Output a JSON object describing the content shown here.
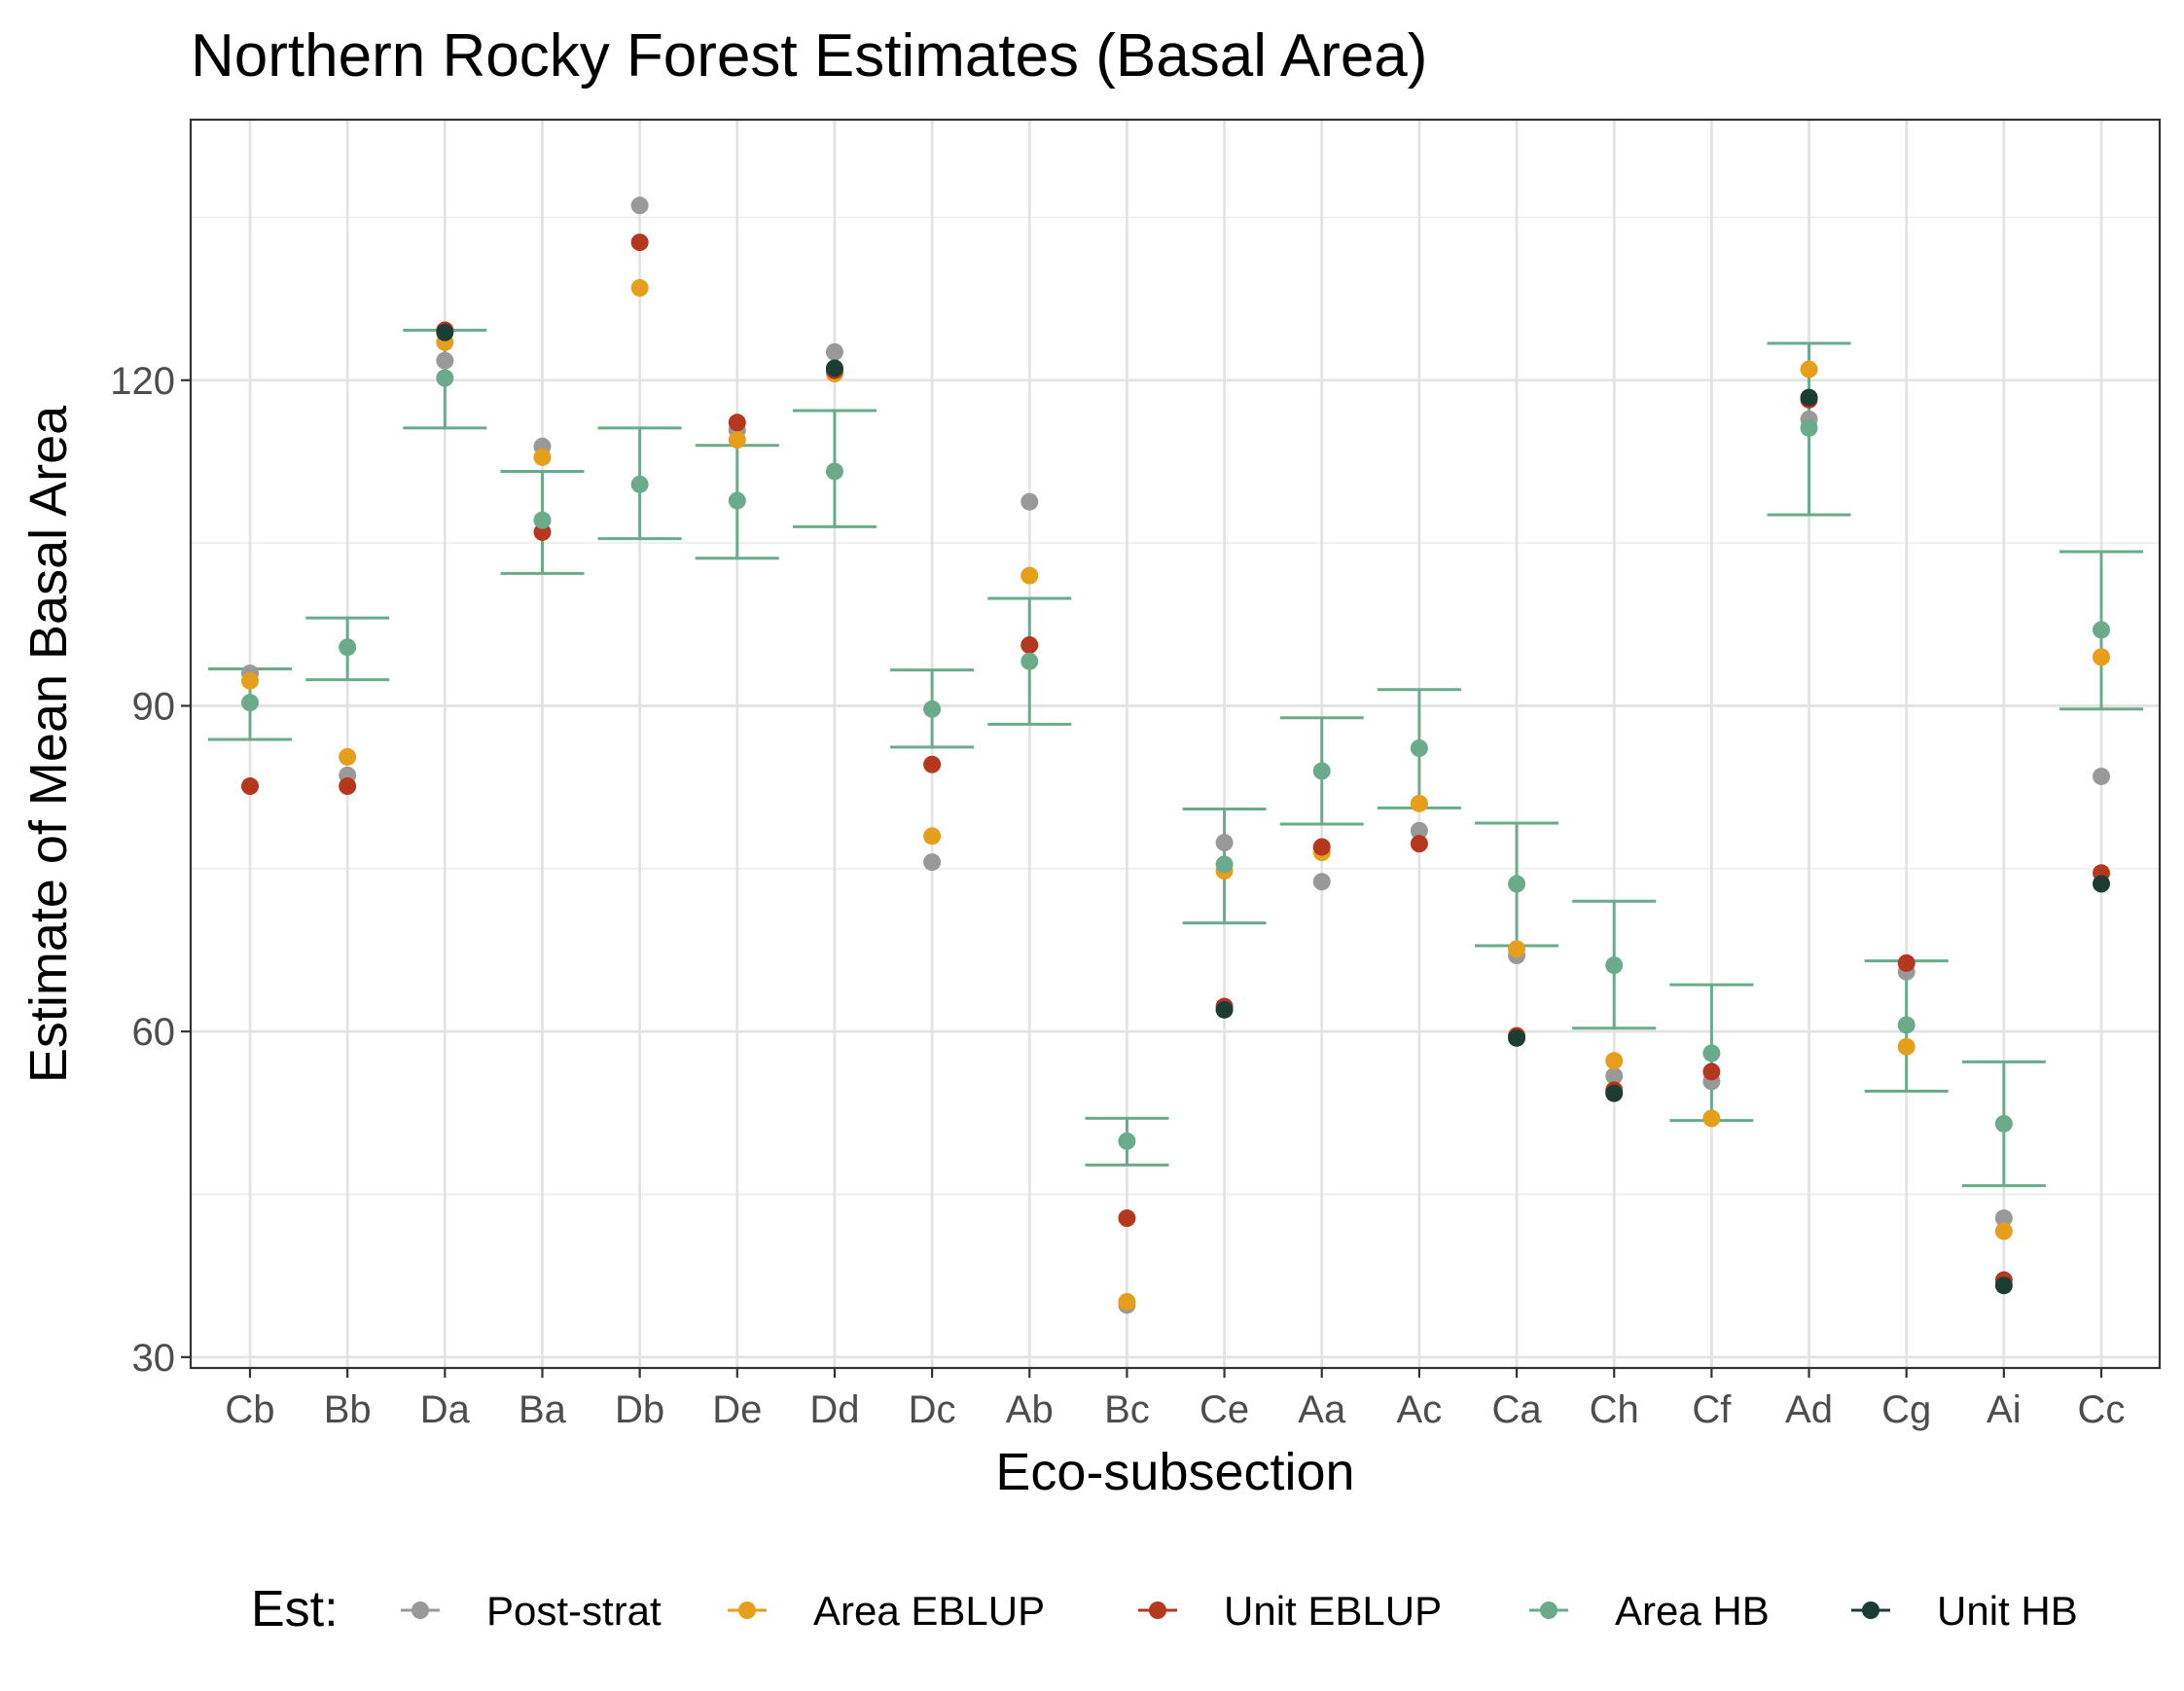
{
  "chart_data": {
    "type": "scatter",
    "title": "Northern Rocky Forest Estimates (Basal Area)",
    "xlabel": "Eco-subsection",
    "ylabel": "Estimate of Mean Basal Area",
    "ylim": [
      29,
      144
    ],
    "y_ticks": [
      30,
      60,
      90,
      120
    ],
    "grid": true,
    "legend_title": "Est:",
    "legend_position": "bottom",
    "categories": [
      "Cb",
      "Bb",
      "Da",
      "Ba",
      "Db",
      "De",
      "Dd",
      "Dc",
      "Ab",
      "Bc",
      "Ce",
      "Aa",
      "Ac",
      "Ca",
      "Ch",
      "Cf",
      "Ad",
      "Cg",
      "Ai",
      "Cc"
    ],
    "series": [
      {
        "name": "Post-strat",
        "color": "#999999",
        "values": [
          93.0,
          83.6,
          121.8,
          113.9,
          136.1,
          115.4,
          122.6,
          75.6,
          108.8,
          34.8,
          77.4,
          73.8,
          78.5,
          67.0,
          55.9,
          55.4,
          116.4,
          65.5,
          42.8,
          83.5
        ]
      },
      {
        "name": "Area EBLUP",
        "color": "#E69F1A",
        "values": [
          92.3,
          85.3,
          123.5,
          112.9,
          128.5,
          114.5,
          120.6,
          78.0,
          102.0,
          35.1,
          74.8,
          76.5,
          81.0,
          67.6,
          57.3,
          52.0,
          121.0,
          58.6,
          41.6,
          94.5
        ]
      },
      {
        "name": "Unit EBLUP",
        "color": "#B5371E",
        "values": [
          82.6,
          82.6,
          124.6,
          106.0,
          132.7,
          116.1,
          120.9,
          84.6,
          95.6,
          42.8,
          62.3,
          77.0,
          77.3,
          59.6,
          54.6,
          56.3,
          118.2,
          66.3,
          37.1,
          74.6
        ]
      },
      {
        "name": "Area HB",
        "color": "#6AAB8C",
        "values": [
          90.3,
          95.4,
          120.2,
          107.1,
          110.4,
          108.9,
          111.6,
          89.7,
          94.1,
          49.9,
          75.4,
          84.0,
          86.1,
          73.6,
          66.1,
          58.0,
          115.6,
          60.6,
          51.5,
          97.0
        ],
        "error_low": [
          86.9,
          92.4,
          115.6,
          102.2,
          105.4,
          103.6,
          106.5,
          86.2,
          88.3,
          47.7,
          70.0,
          79.1,
          80.6,
          67.9,
          60.3,
          51.8,
          107.6,
          54.5,
          45.8,
          89.7
        ],
        "error_high": [
          93.4,
          98.1,
          124.6,
          111.6,
          115.6,
          114.0,
          117.2,
          93.3,
          99.9,
          52.0,
          80.5,
          88.9,
          91.5,
          79.2,
          72.0,
          64.3,
          123.4,
          66.5,
          57.2,
          104.2
        ]
      },
      {
        "name": "Unit HB",
        "color": "#1C3D33",
        "values": [
          null,
          null,
          124.4,
          null,
          null,
          null,
          121.1,
          null,
          null,
          null,
          62.0,
          null,
          null,
          59.4,
          54.3,
          null,
          118.4,
          null,
          36.6,
          73.6
        ]
      }
    ]
  }
}
